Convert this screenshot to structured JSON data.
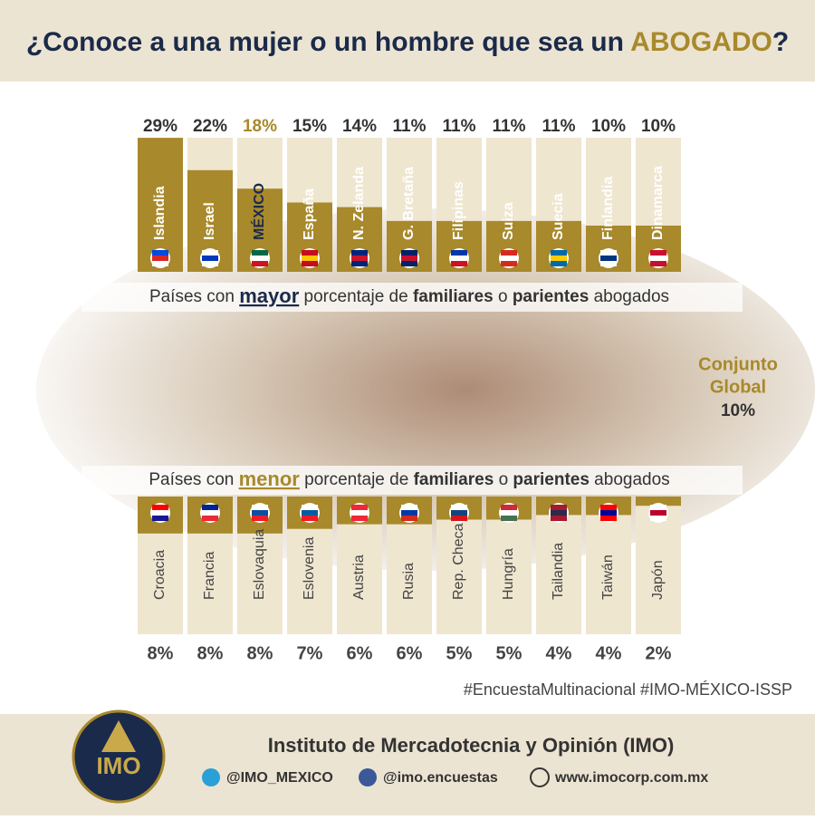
{
  "header": {
    "title": [
      "¿Conoce a una mujer o un hombre que sea un ",
      "ABOGADO",
      "?"
    ]
  },
  "chart_data": [
    {
      "type": "bar",
      "subtitle": [
        "Países con ",
        "mayor",
        " porcentaje de ",
        "familiares",
        " o ",
        "parientes",
        " abogados"
      ],
      "categories": [
        "Islandia",
        "Israel",
        "MÉXICO",
        "España",
        "N. Zelanda",
        "G. Bretaña",
        "Filipinas",
        "Suiza",
        "Suecia",
        "Finlandia",
        "Dinamarca"
      ],
      "values": [
        29,
        22,
        18,
        15,
        14,
        11,
        11,
        11,
        11,
        10,
        10
      ],
      "value_labels": [
        "29%",
        "22%",
        "18%",
        "15%",
        "14%",
        "11%",
        "11%",
        "11%",
        "11%",
        "10%",
        "10%"
      ],
      "color": "#a8892b",
      "direction": "up",
      "highlight_index": 2
    },
    {
      "type": "bar",
      "subtitle": [
        "Países con ",
        "menor",
        " porcentaje de ",
        "familiares",
        " o ",
        "parientes",
        " abogados"
      ],
      "categories": [
        "Croacia",
        "Francia",
        "Eslovaquia",
        "Eslovenia",
        "Austria",
        "Rusia",
        "Rep. Checa",
        "Hungría",
        "Tailandia",
        "Taiwán",
        "Japón"
      ],
      "values": [
        8,
        8,
        8,
        7,
        6,
        6,
        5,
        5,
        4,
        4,
        2
      ],
      "value_labels": [
        "8%",
        "8%",
        "8%",
        "7%",
        "6%",
        "6%",
        "5%",
        "5%",
        "4%",
        "4%",
        "2%"
      ],
      "color": "#a8892b",
      "direction": "down"
    }
  ],
  "global": {
    "label": [
      "Conjunto",
      "Global"
    ],
    "value_label": "10%"
  },
  "hashtags": "#EncuestaMultinacional #IMO-MÉXICO-ISSP",
  "footer": {
    "logo": "IMO",
    "org": "Instituto de Mercadotecnia y Opinión (IMO)",
    "twitter": "@IMO_MEXICO",
    "facebook": "@imo.encuestas",
    "web": "www.imocorp.com.mx"
  }
}
